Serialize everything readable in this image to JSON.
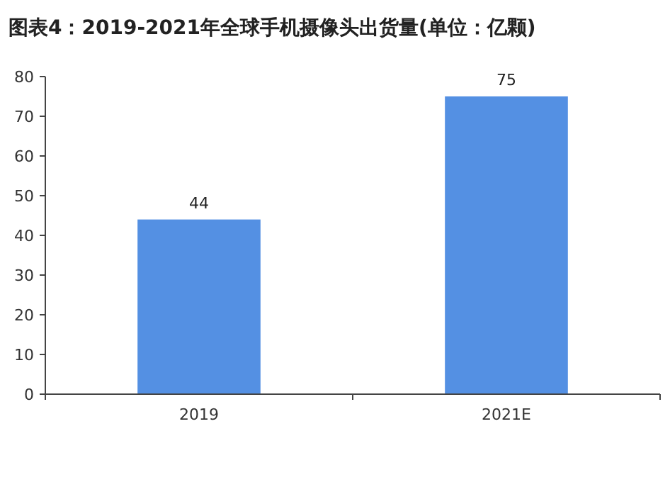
{
  "chart_data": {
    "type": "bar",
    "title": "图表4：2019-2021年全球手机摄像头出货量(单位：亿颗)",
    "categories": [
      "2019",
      "2021E"
    ],
    "series": [
      {
        "color": "#5490e3",
        "values": [
          44,
          75
        ]
      }
    ],
    "ylim": [
      0,
      80
    ],
    "yticks": [
      0,
      10,
      20,
      30,
      40,
      50,
      60,
      70,
      80
    ],
    "data_labels": true
  }
}
